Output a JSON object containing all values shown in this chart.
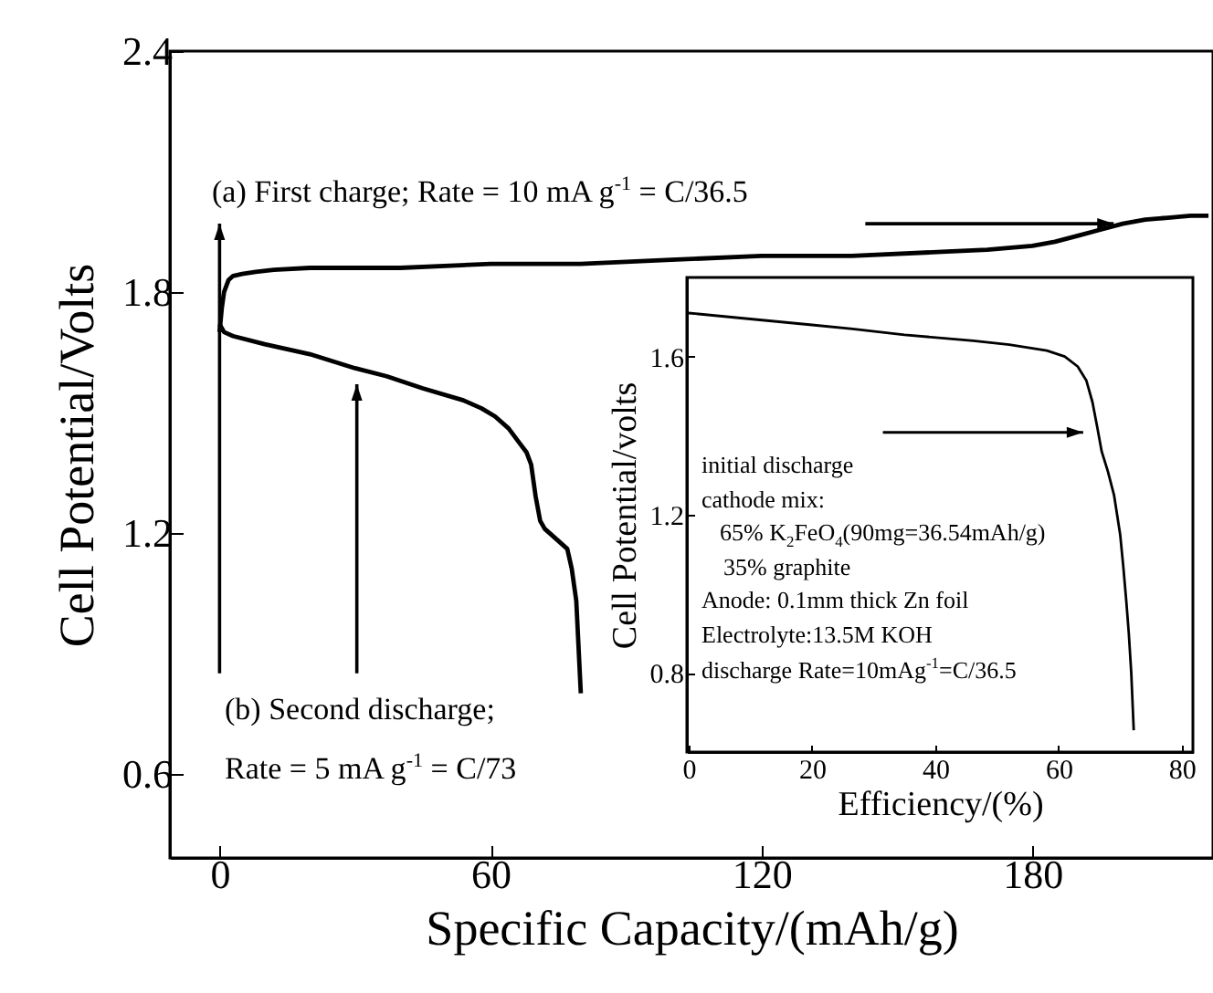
{
  "chart_data": [
    {
      "type": "line",
      "xlabel": "Specific Capacity/(mAh/g)",
      "ylabel": "Cell Potential/Volts",
      "xlim": [
        -11,
        220
      ],
      "ylim": [
        0.39,
        2.4
      ],
      "xticks": [
        0,
        60,
        120,
        180
      ],
      "yticks": [
        0.6,
        1.2,
        1.8,
        2.4
      ],
      "grid": false,
      "series": [
        {
          "color": "#000000",
          "x": [
            0,
            0.5,
            1,
            2,
            3,
            5,
            8,
            12,
            20,
            40,
            60,
            80,
            100,
            120,
            140,
            160,
            170,
            180,
            185,
            190,
            195,
            200,
            205,
            210,
            215,
            219
          ],
          "values": [
            1.7,
            1.76,
            1.8,
            1.83,
            1.84,
            1.845,
            1.85,
            1.855,
            1.86,
            1.86,
            1.87,
            1.87,
            1.88,
            1.89,
            1.89,
            1.9,
            1.905,
            1.915,
            1.925,
            1.94,
            1.955,
            1.97,
            1.98,
            1.985,
            1.99,
            1.99
          ]
        },
        {
          "color": "#000000",
          "x": [
            0,
            1,
            3,
            10,
            20,
            30,
            37,
            45,
            54,
            58,
            61,
            64,
            66,
            68,
            69,
            70,
            71,
            72,
            74,
            77,
            78,
            79,
            80
          ],
          "values": [
            1.72,
            1.7,
            1.69,
            1.67,
            1.645,
            1.61,
            1.59,
            1.56,
            1.53,
            1.51,
            1.49,
            1.46,
            1.43,
            1.4,
            1.37,
            1.29,
            1.23,
            1.21,
            1.19,
            1.16,
            1.11,
            1.03,
            0.8
          ]
        }
      ],
      "annotations": [
        "(a) First charge; Rate = 10 mA g$^{-1}$ = C/36.5",
        "(b) Second discharge;",
        "Rate = 5 mA g$^{-1}$ = C/73"
      ]
    },
    {
      "type": "line",
      "xlabel": "Efficiency/(%)",
      "ylabel": "Cell Potential/volts",
      "xlim": [
        -0.3,
        81.8
      ],
      "ylim": [
        0.6,
        1.8
      ],
      "xticks": [
        0,
        20,
        40,
        60,
        80
      ],
      "yticks": [
        0.8,
        1.2,
        1.6
      ],
      "grid": false,
      "series": [
        {
          "color": "#000000",
          "x": [
            0,
            10,
            20,
            26.6,
            35,
            46.2,
            52,
            58.1,
            61,
            63.1,
            64.5,
            65.5,
            66.3,
            67,
            68,
            69,
            70,
            70.5,
            71,
            71.4,
            71.8,
            72.2
          ],
          "values": [
            1.71,
            1.695,
            1.68,
            1.67,
            1.655,
            1.64,
            1.63,
            1.615,
            1.6,
            1.575,
            1.54,
            1.485,
            1.42,
            1.36,
            1.31,
            1.25,
            1.15,
            1.07,
            0.98,
            0.9,
            0.8,
            0.655
          ]
        }
      ],
      "annotations": [
        "initial discharge",
        "cathode mix:",
        "65% K$_{2}$FeO$_{4}$(90mg=36.54mAh/g)",
        "35% graphite",
        "Anode: 0.1mm thick Zn foil",
        "Electrolyte:13.5M KOH",
        "discharge Rate=10mAg$^{-1}$=C/36.5"
      ]
    }
  ]
}
